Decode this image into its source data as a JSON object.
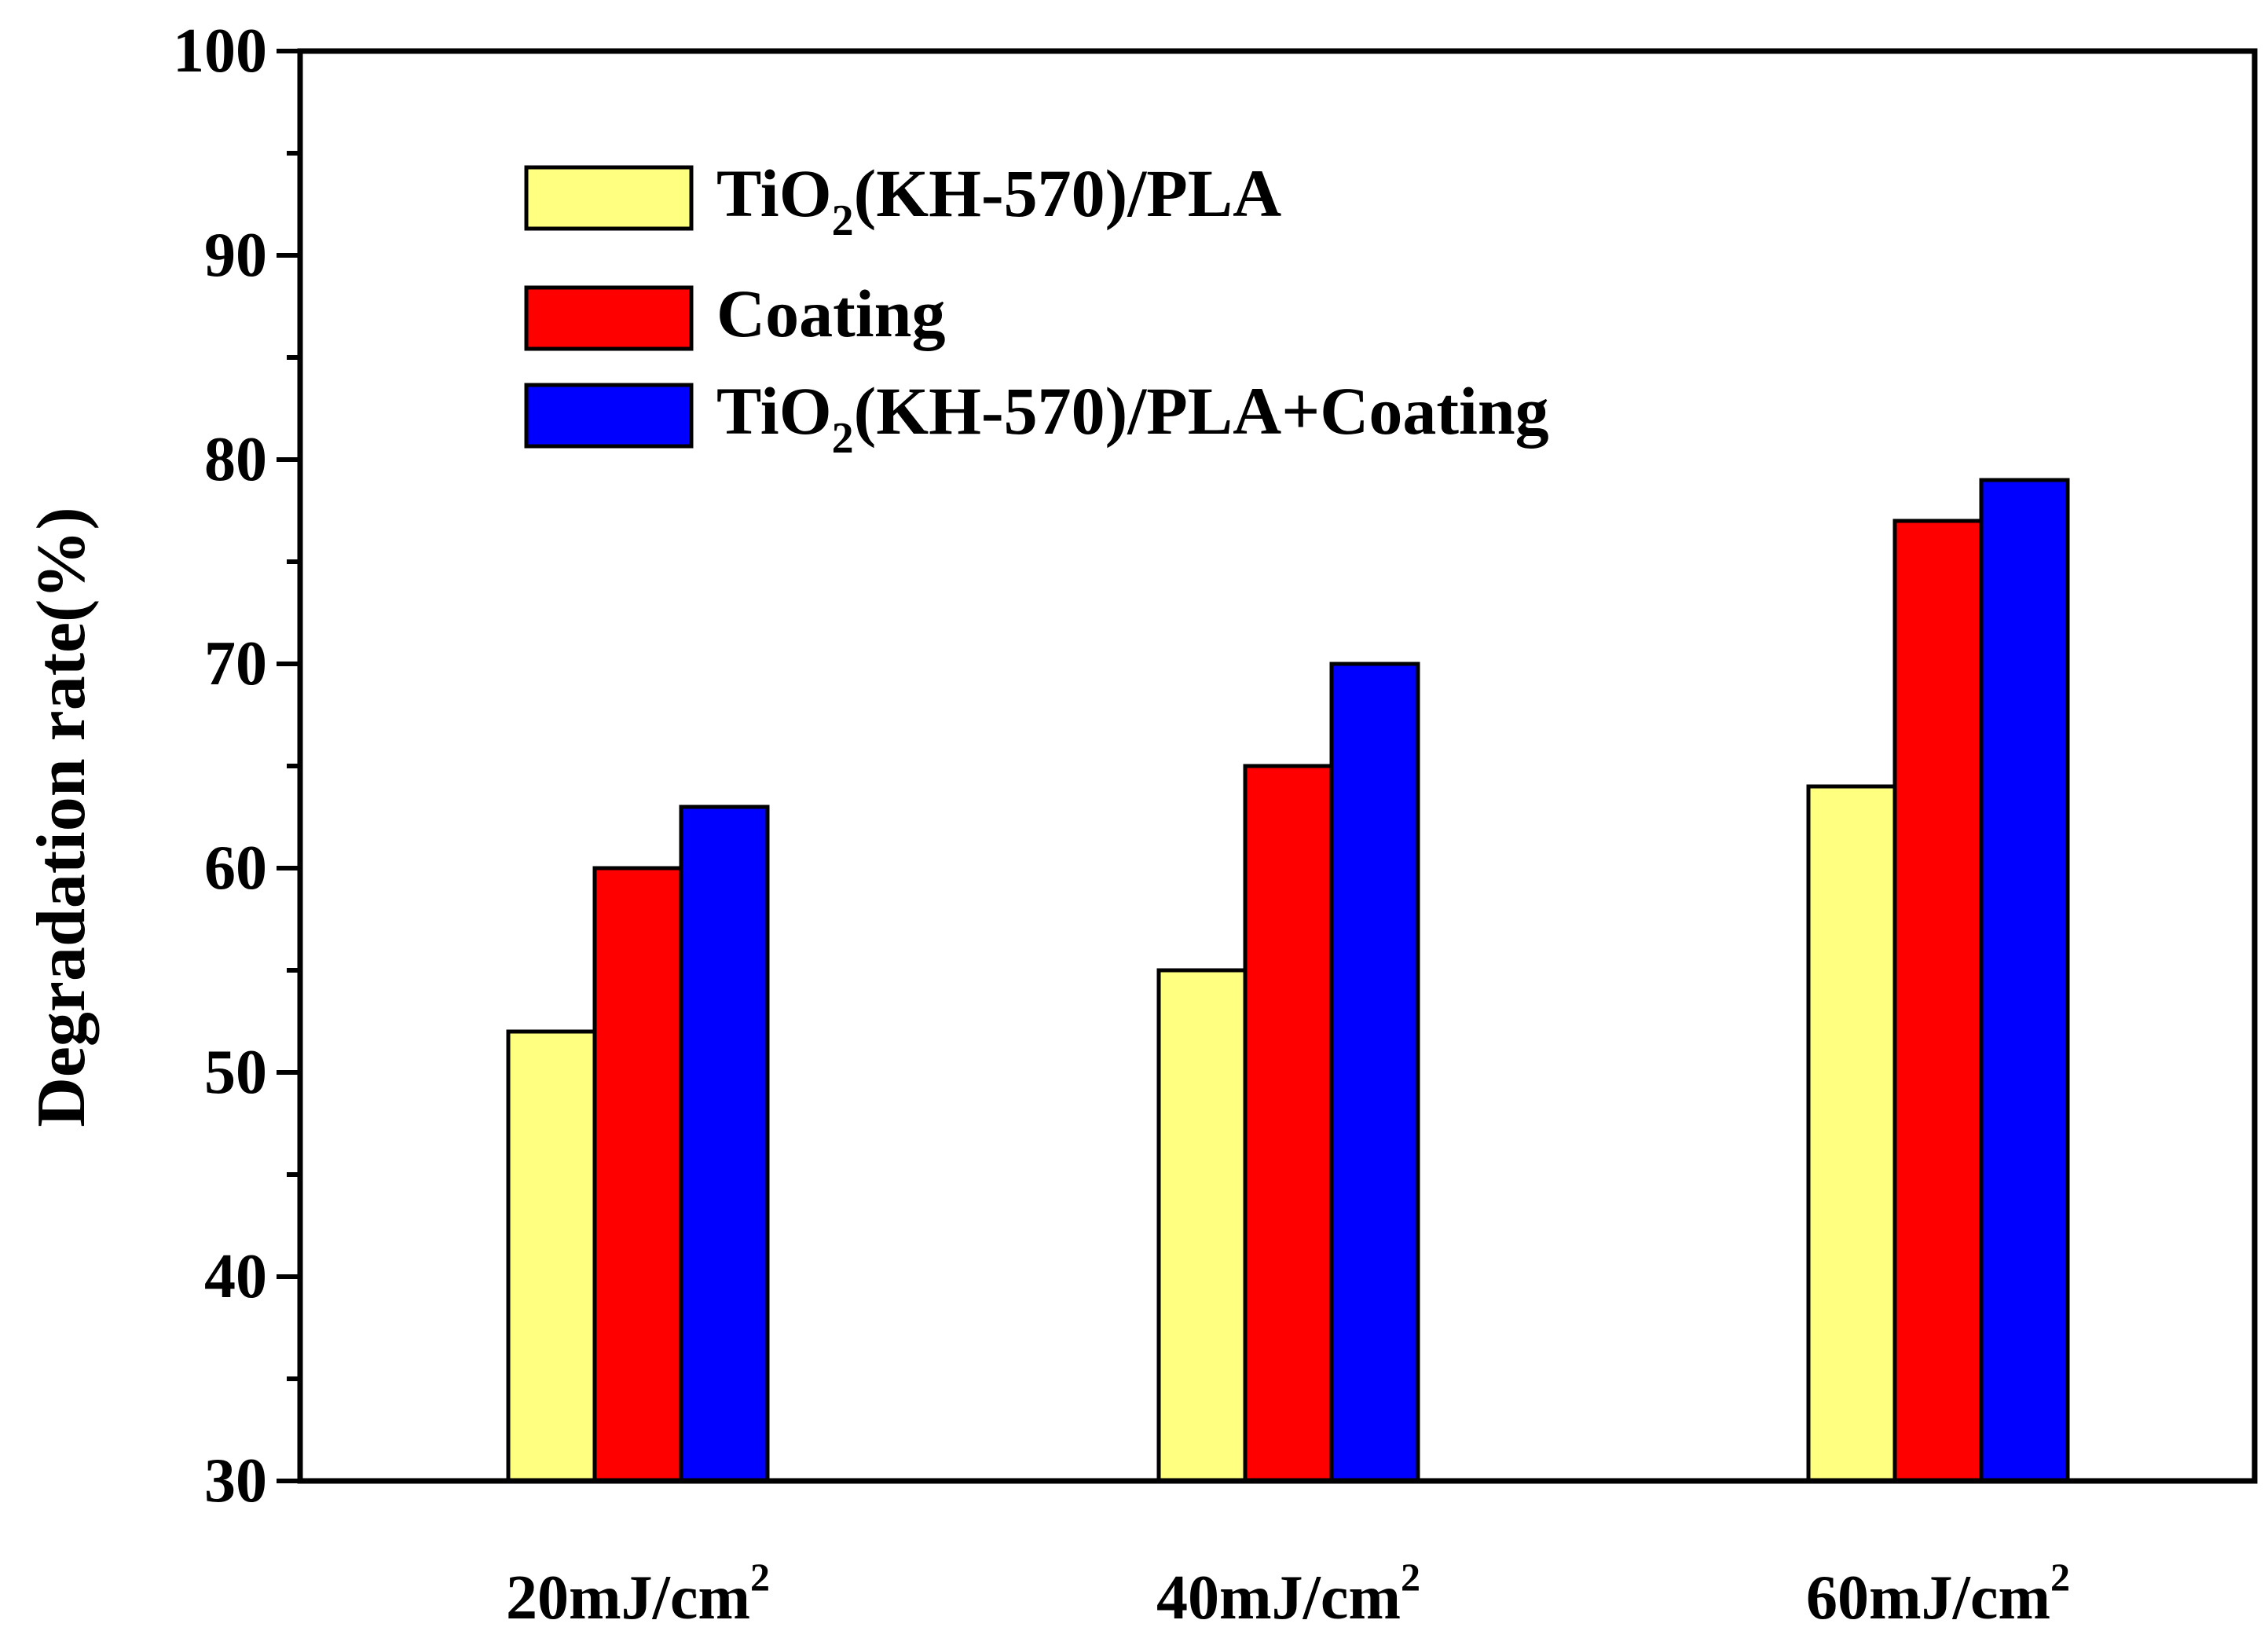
{
  "chart_data": {
    "type": "bar",
    "title": "",
    "xlabel": "",
    "ylabel": "Degradation rate(%)",
    "ylim": [
      30,
      100
    ],
    "yticks": [
      "30",
      "40",
      "50",
      "60",
      "70",
      "80",
      "90",
      "100"
    ],
    "categories": [
      {
        "base": "20mJ/cm",
        "sup": "2"
      },
      {
        "base": "40mJ/cm",
        "sup": "2"
      },
      {
        "base": "60mJ/cm",
        "sup": "2"
      }
    ],
    "series": [
      {
        "name": "TiO2(KH-570)/PLA",
        "label_parts": [
          "TiO",
          "2",
          "(KH-570)/PLA"
        ],
        "color": "#FFFF80",
        "values": [
          52,
          55,
          64
        ]
      },
      {
        "name": "Coating",
        "label_parts": [
          "Coating"
        ],
        "color": "#FF0000",
        "values": [
          60,
          65,
          77
        ]
      },
      {
        "name": "TiO2(KH-570)/PLA+Coating",
        "label_parts": [
          "TiO",
          "2",
          "(KH-570)/PLA+Coating"
        ],
        "color": "#0000FF",
        "values": [
          63,
          70,
          79
        ]
      }
    ],
    "grid": false,
    "legend_position": "top-left"
  }
}
